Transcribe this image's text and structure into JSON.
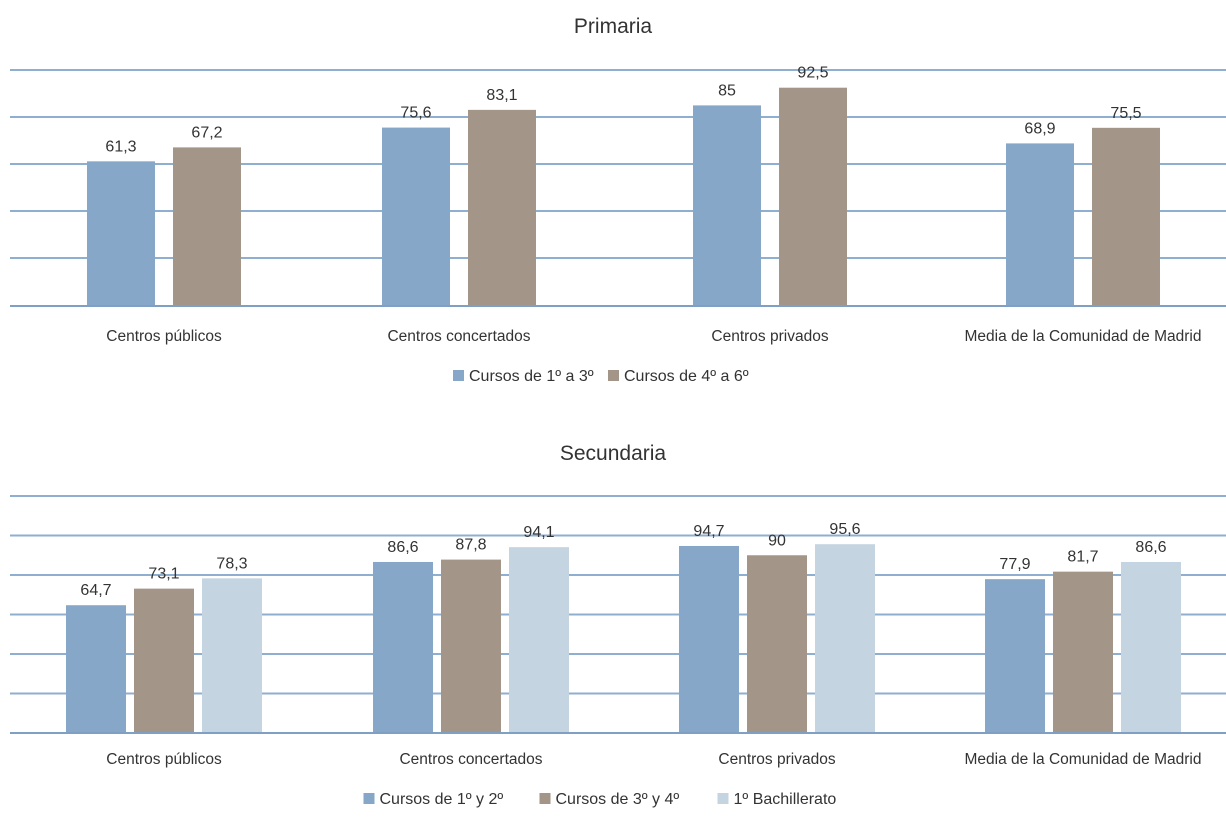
{
  "colors": {
    "gridline": "#8fafd0",
    "baseline": "#7f9fc4",
    "text": "#333333",
    "series_1": "#86a7c7",
    "series_2": "#a39588",
    "series_3": "#c5d4e1"
  },
  "chart_data": [
    {
      "type": "bar",
      "title": "Primaria",
      "categories": [
        "Centros públicos",
        "Centros concertados",
        "Centros privados",
        "Media de la Comunidad de Madrid"
      ],
      "series": [
        {
          "name": "Cursos de 1º a 3º",
          "values": [
            61.3,
            75.6,
            85,
            68.9
          ],
          "labels": [
            "61,3",
            "75,6",
            "85",
            "68,9"
          ]
        },
        {
          "name": "Cursos de 4º a 6º",
          "values": [
            67.2,
            83.1,
            92.5,
            75.5
          ],
          "labels": [
            "67,2",
            "83,1",
            "92,5",
            "75,5"
          ]
        }
      ],
      "ylim": [
        0,
        100
      ],
      "grid": true,
      "legend": "bottom"
    },
    {
      "type": "bar",
      "title": "Secundaria",
      "categories": [
        "Centros públicos",
        "Centros concertados",
        "Centros privados",
        "Media de la Comunidad de Madrid"
      ],
      "series": [
        {
          "name": "Cursos de 1º y 2º",
          "values": [
            64.7,
            86.6,
            94.7,
            77.9
          ],
          "labels": [
            "64,7",
            "86,6",
            "94,7",
            "77,9"
          ]
        },
        {
          "name": "Cursos de 3º y 4º",
          "values": [
            73.1,
            87.8,
            90,
            81.7
          ],
          "labels": [
            "73,1",
            "87,8",
            "90",
            "81,7"
          ]
        },
        {
          "name": "1º Bachillerato",
          "values": [
            78.3,
            94.1,
            95.6,
            86.6
          ],
          "labels": [
            "78,3",
            "94,1",
            "95,6",
            "86,6"
          ]
        }
      ],
      "ylim": [
        0,
        120
      ],
      "grid": true,
      "legend": "bottom"
    }
  ]
}
